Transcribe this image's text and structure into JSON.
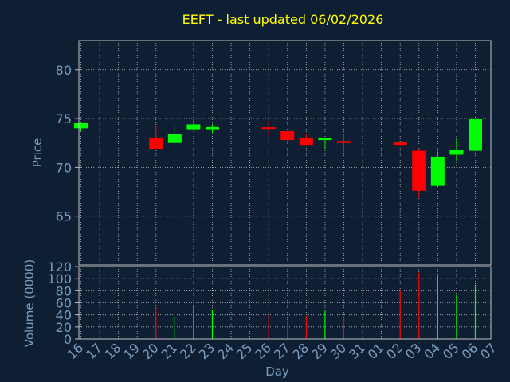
{
  "chart_data": {
    "type": "candlestick",
    "title": "EEFT - last updated 06/02/2026",
    "xlabel": "Day",
    "ylabel_price": "Price",
    "ylabel_volume": "Volume (0000)",
    "grid": true,
    "colors": {
      "background": "#0f1f33",
      "up": "#00ff00",
      "down": "#ff0000",
      "title": "#ffff00",
      "axis_text": "#7a9ec0",
      "frame": "#c0c0c0",
      "grid": "#c0c0c0"
    },
    "categories": [
      "16",
      "17",
      "18",
      "19",
      "20",
      "21",
      "22",
      "23",
      "24",
      "25",
      "26",
      "27",
      "28",
      "29",
      "30",
      "31",
      "01",
      "02",
      "03",
      "04",
      "05",
      "06",
      "07"
    ],
    "price_ylim": [
      60,
      83
    ],
    "price_ticks": [
      65,
      70,
      75,
      80
    ],
    "volume_ylim": [
      0,
      120
    ],
    "volume_ticks": [
      0,
      20,
      40,
      60,
      80,
      100,
      120
    ],
    "candles": [
      {
        "day": "16",
        "open": 74.0,
        "high": 74.6,
        "low": 73.8,
        "close": 74.6
      },
      {
        "day": "20",
        "open": 73.0,
        "high": 74.3,
        "low": 71.9,
        "close": 71.9
      },
      {
        "day": "21",
        "open": 72.5,
        "high": 74.3,
        "low": 72.5,
        "close": 73.4
      },
      {
        "day": "22",
        "open": 73.9,
        "high": 74.8,
        "low": 73.9,
        "close": 74.4
      },
      {
        "day": "23",
        "open": 73.9,
        "high": 74.4,
        "low": 73.5,
        "close": 74.2
      },
      {
        "day": "26",
        "open": 74.1,
        "high": 74.8,
        "low": 73.1,
        "close": 74.0
      },
      {
        "day": "27",
        "open": 73.7,
        "high": 73.7,
        "low": 72.8,
        "close": 72.8
      },
      {
        "day": "28",
        "open": 73.0,
        "high": 73.4,
        "low": 72.3,
        "close": 72.3
      },
      {
        "day": "29",
        "open": 72.8,
        "high": 73.0,
        "low": 71.9,
        "close": 73.0
      },
      {
        "day": "30",
        "open": 72.7,
        "high": 73.5,
        "low": 71.6,
        "close": 72.5
      },
      {
        "day": "02",
        "open": 72.6,
        "high": 72.6,
        "low": 72.2,
        "close": 72.3
      },
      {
        "day": "03",
        "open": 71.7,
        "high": 71.9,
        "low": 66.9,
        "close": 67.6
      },
      {
        "day": "04",
        "open": 68.1,
        "high": 71.6,
        "low": 68.1,
        "close": 71.1
      },
      {
        "day": "05",
        "open": 71.3,
        "high": 72.9,
        "low": 70.7,
        "close": 71.8
      },
      {
        "day": "06",
        "open": 71.7,
        "high": 75.0,
        "low": 71.7,
        "close": 75.0
      }
    ],
    "volume": [
      {
        "day": "20",
        "value": 52,
        "up": false
      },
      {
        "day": "21",
        "value": 37,
        "up": true
      },
      {
        "day": "22",
        "value": 55,
        "up": true
      },
      {
        "day": "23",
        "value": 48,
        "up": true
      },
      {
        "day": "26",
        "value": 40,
        "up": false
      },
      {
        "day": "27",
        "value": 31,
        "up": false
      },
      {
        "day": "28",
        "value": 38,
        "up": false
      },
      {
        "day": "29",
        "value": 47,
        "up": true
      },
      {
        "day": "30",
        "value": 38,
        "up": false
      },
      {
        "day": "02",
        "value": 80,
        "up": false
      },
      {
        "day": "03",
        "value": 110,
        "up": false
      },
      {
        "day": "04",
        "value": 105,
        "up": true
      },
      {
        "day": "05",
        "value": 73,
        "up": true
      },
      {
        "day": "06",
        "value": 90,
        "up": true
      }
    ]
  }
}
